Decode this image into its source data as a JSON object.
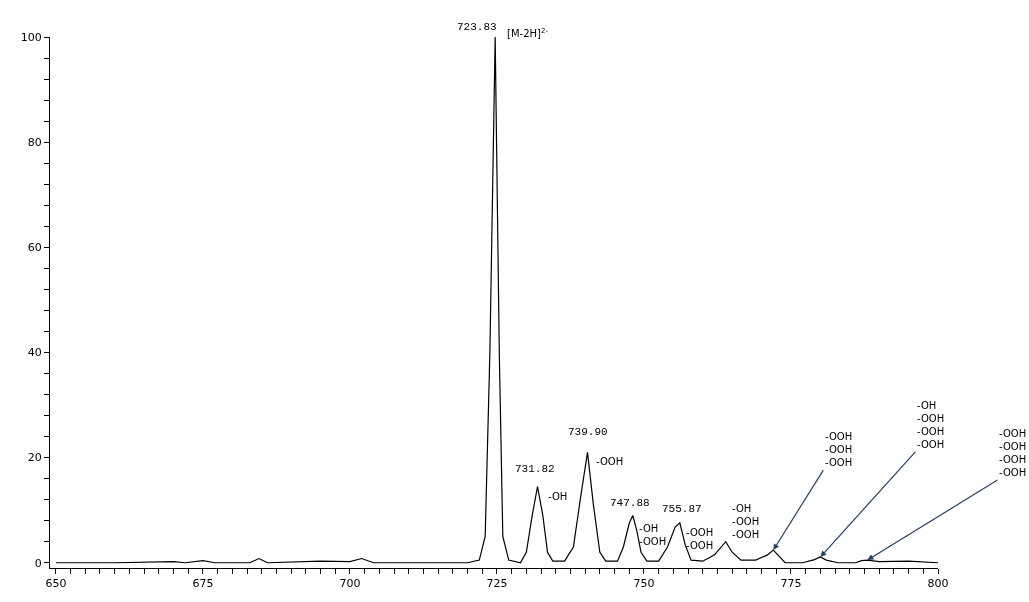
{
  "chart_data": {
    "type": "line",
    "grid": false,
    "legend": false,
    "marker": "none",
    "line_style": "solid",
    "xlim": [
      649,
      800
    ],
    "ylim": [
      -1,
      100
    ],
    "xticks": [
      650,
      {
        "value": 652.5,
        "label": null
      },
      {
        "value": 655,
        "label": null
      },
      {
        "value": 657.5,
        "label": null
      },
      {
        "value": 660,
        "label": null
      },
      {
        "value": 662.5,
        "label": null
      },
      {
        "value": 665,
        "label": null
      },
      {
        "value": 667.5,
        "label": null
      },
      {
        "value": 670,
        "label": null
      },
      {
        "value": 672.5,
        "label": null
      },
      675,
      {
        "value": 677.5,
        "label": null
      },
      {
        "value": 680,
        "label": null
      },
      {
        "value": 682.5,
        "label": null
      },
      {
        "value": 685,
        "label": null
      },
      {
        "value": 687.5,
        "label": null
      },
      {
        "value": 690,
        "label": null
      },
      {
        "value": 692.5,
        "label": null
      },
      {
        "value": 695,
        "label": null
      },
      {
        "value": 697.5,
        "label": null
      },
      700,
      {
        "value": 702.5,
        "label": null
      },
      {
        "value": 705,
        "label": null
      },
      {
        "value": 707.5,
        "label": null
      },
      {
        "value": 710,
        "label": null
      },
      {
        "value": 712.5,
        "label": null
      },
      {
        "value": 715,
        "label": null
      },
      {
        "value": 717.5,
        "label": null
      },
      {
        "value": 720,
        "label": null
      },
      {
        "value": 722.5,
        "label": null
      },
      725,
      {
        "value": 727.5,
        "label": null
      },
      {
        "value": 730,
        "label": null
      },
      {
        "value": 732.5,
        "label": null
      },
      {
        "value": 735,
        "label": null
      },
      {
        "value": 737.5,
        "label": null
      },
      {
        "value": 740,
        "label": null
      },
      {
        "value": 742.5,
        "label": null
      },
      {
        "value": 745,
        "label": null
      },
      {
        "value": 747.5,
        "label": null
      },
      750,
      {
        "value": 752.5,
        "label": null
      },
      {
        "value": 755,
        "label": null
      },
      {
        "value": 757.5,
        "label": null
      },
      {
        "value": 760,
        "label": null
      },
      {
        "value": 762.5,
        "label": null
      },
      {
        "value": 765,
        "label": null
      },
      {
        "value": 767.5,
        "label": null
      },
      {
        "value": 770,
        "label": null
      },
      {
        "value": 772.5,
        "label": null
      },
      775,
      {
        "value": 777.5,
        "label": null
      },
      {
        "value": 780,
        "label": null
      },
      {
        "value": 782.5,
        "label": null
      },
      {
        "value": 785,
        "label": null
      },
      {
        "value": 787.5,
        "label": null
      },
      {
        "value": 790,
        "label": null
      },
      {
        "value": 792.5,
        "label": null
      },
      {
        "value": 795,
        "label": null
      },
      {
        "value": 797.5,
        "label": null
      },
      800
    ],
    "yticks": [
      0,
      {
        "value": 4,
        "label": null
      },
      {
        "value": 8,
        "label": null
      },
      {
        "value": 12,
        "label": null
      },
      {
        "value": 16,
        "label": null
      },
      20,
      {
        "value": 24,
        "label": null
      },
      {
        "value": 28,
        "label": null
      },
      {
        "value": 32,
        "label": null
      },
      {
        "value": 36,
        "label": null
      },
      40,
      {
        "value": 44,
        "label": null
      },
      {
        "value": 48,
        "label": null
      },
      {
        "value": 52,
        "label": null
      },
      {
        "value": 56,
        "label": null
      },
      60,
      {
        "value": 64,
        "label": null
      },
      {
        "value": 68,
        "label": null
      },
      {
        "value": 72,
        "label": null
      },
      {
        "value": 76,
        "label": null
      },
      80,
      {
        "value": 84,
        "label": null
      },
      {
        "value": 88,
        "label": null
      },
      {
        "value": 92,
        "label": null
      },
      {
        "value": 96,
        "label": null
      },
      100
    ],
    "series": [
      {
        "color": "#000000",
        "x": [
          650,
          660,
          670,
          672,
          675,
          677,
          683,
          684.5,
          686,
          695,
          700,
          702,
          704,
          715,
          720,
          722,
          723,
          723.8,
          724.7,
          725.4,
          726,
          727,
          729,
          730,
          731,
          731.9,
          732.8,
          733.6,
          734.5,
          736.5,
          738,
          739.3,
          740.4,
          741.4,
          742.5,
          743.5,
          745.5,
          746.5,
          747.5,
          748.1,
          748.8,
          749.5,
          750.5,
          752.5,
          754,
          755.3,
          756.1,
          757,
          758,
          760,
          762,
          763.9,
          765,
          766.5,
          769,
          771,
          772,
          773,
          774,
          777,
          779,
          780,
          781,
          783,
          786,
          787,
          788,
          790,
          795,
          800
        ],
        "values": [
          0,
          0,
          0.2,
          0,
          0.4,
          0,
          0,
          0.8,
          0,
          0.3,
          0.2,
          0.8,
          0,
          0,
          0,
          0.5,
          5,
          40,
          100,
          40,
          5,
          0.5,
          0,
          2,
          9,
          14.5,
          9,
          2,
          0.3,
          0.3,
          3,
          13,
          21,
          11,
          2,
          0.3,
          0.3,
          3,
          7.5,
          9,
          6,
          2,
          0.3,
          0.3,
          3,
          6.8,
          7.6,
          3.5,
          0.5,
          0.3,
          1.5,
          4,
          2,
          0.5,
          0.5,
          1.5,
          2.4,
          1.2,
          0,
          0,
          0.6,
          1.1,
          0.5,
          0,
          0,
          0.4,
          0.5,
          0.2,
          0.3,
          0
        ]
      }
    ],
    "annotations": [
      {
        "text": "723.83",
        "x": 724.7,
        "y": 100
      },
      {
        "text": "[M-2H]$^{2-}$",
        "x": 724.7,
        "y": 100
      },
      {
        "text": "731.82",
        "x": 731.9,
        "y": 14.5
      },
      {
        "text": "739.90",
        "x": 740.4,
        "y": 21
      },
      {
        "text": "747.88",
        "x": 748.1,
        "y": 9
      },
      {
        "text": "755.87",
        "x": 756.1,
        "y": 7.6
      },
      {
        "text": "-OH",
        "x": 731.9,
        "y": 14.5
      },
      {
        "text": "-OOH",
        "x": 740.4,
        "y": 21
      },
      {
        "text": "-OH\n-OOH",
        "x": 748.1,
        "y": 9
      },
      {
        "text": "-OOH\n-OOH",
        "x": 756.1,
        "y": 7.6
      },
      {
        "text": "-OH\n-OOH\n-OOH",
        "x": 763.9,
        "y": 4
      },
      {
        "text": "-OOH\n-OOH\n-OOH",
        "x": 772,
        "y": 2.4
      },
      {
        "text": "-OH\n-OOH\n-OOH\n-OOH",
        "x": 780,
        "y": 1.1
      },
      {
        "text": "-OOH\n-OOH\n-OOH\n-OOH",
        "x": 788,
        "y": 0.5
      }
    ]
  }
}
